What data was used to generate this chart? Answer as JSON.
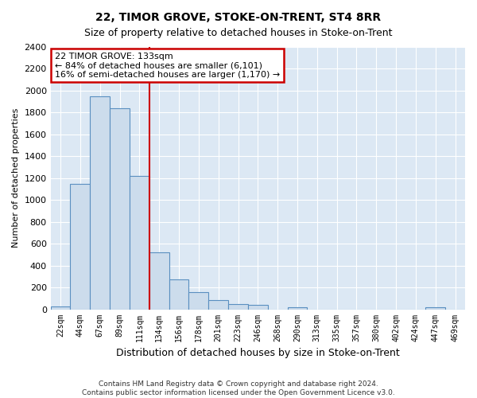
{
  "title": "22, TIMOR GROVE, STOKE-ON-TRENT, ST4 8RR",
  "subtitle": "Size of property relative to detached houses in Stoke-on-Trent",
  "xlabel": "Distribution of detached houses by size in Stoke-on-Trent",
  "ylabel": "Number of detached properties",
  "categories": [
    "22sqm",
    "44sqm",
    "67sqm",
    "89sqm",
    "111sqm",
    "134sqm",
    "156sqm",
    "178sqm",
    "201sqm",
    "223sqm",
    "246sqm",
    "268sqm",
    "290sqm",
    "313sqm",
    "335sqm",
    "357sqm",
    "380sqm",
    "402sqm",
    "424sqm",
    "447sqm",
    "469sqm"
  ],
  "values": [
    25,
    1150,
    1950,
    1840,
    1220,
    520,
    270,
    155,
    85,
    45,
    40,
    0,
    20,
    0,
    0,
    0,
    0,
    0,
    0,
    20,
    0
  ],
  "bar_color": "#ccdcec",
  "bar_edge_color": "#5a8fc0",
  "vline_color": "#cc0000",
  "vline_index": 4.5,
  "annotation_text": "22 TIMOR GROVE: 133sqm\n← 84% of detached houses are smaller (6,101)\n16% of semi-detached houses are larger (1,170) →",
  "annotation_box_color": "#ffffff",
  "annotation_box_edge": "#cc0000",
  "ylim": [
    0,
    2400
  ],
  "yticks": [
    0,
    200,
    400,
    600,
    800,
    1000,
    1200,
    1400,
    1600,
    1800,
    2000,
    2200,
    2400
  ],
  "fig_background_color": "#ffffff",
  "background_color": "#dce8f4",
  "grid_color": "#ffffff",
  "footer1": "Contains HM Land Registry data © Crown copyright and database right 2024.",
  "footer2": "Contains public sector information licensed under the Open Government Licence v3.0."
}
